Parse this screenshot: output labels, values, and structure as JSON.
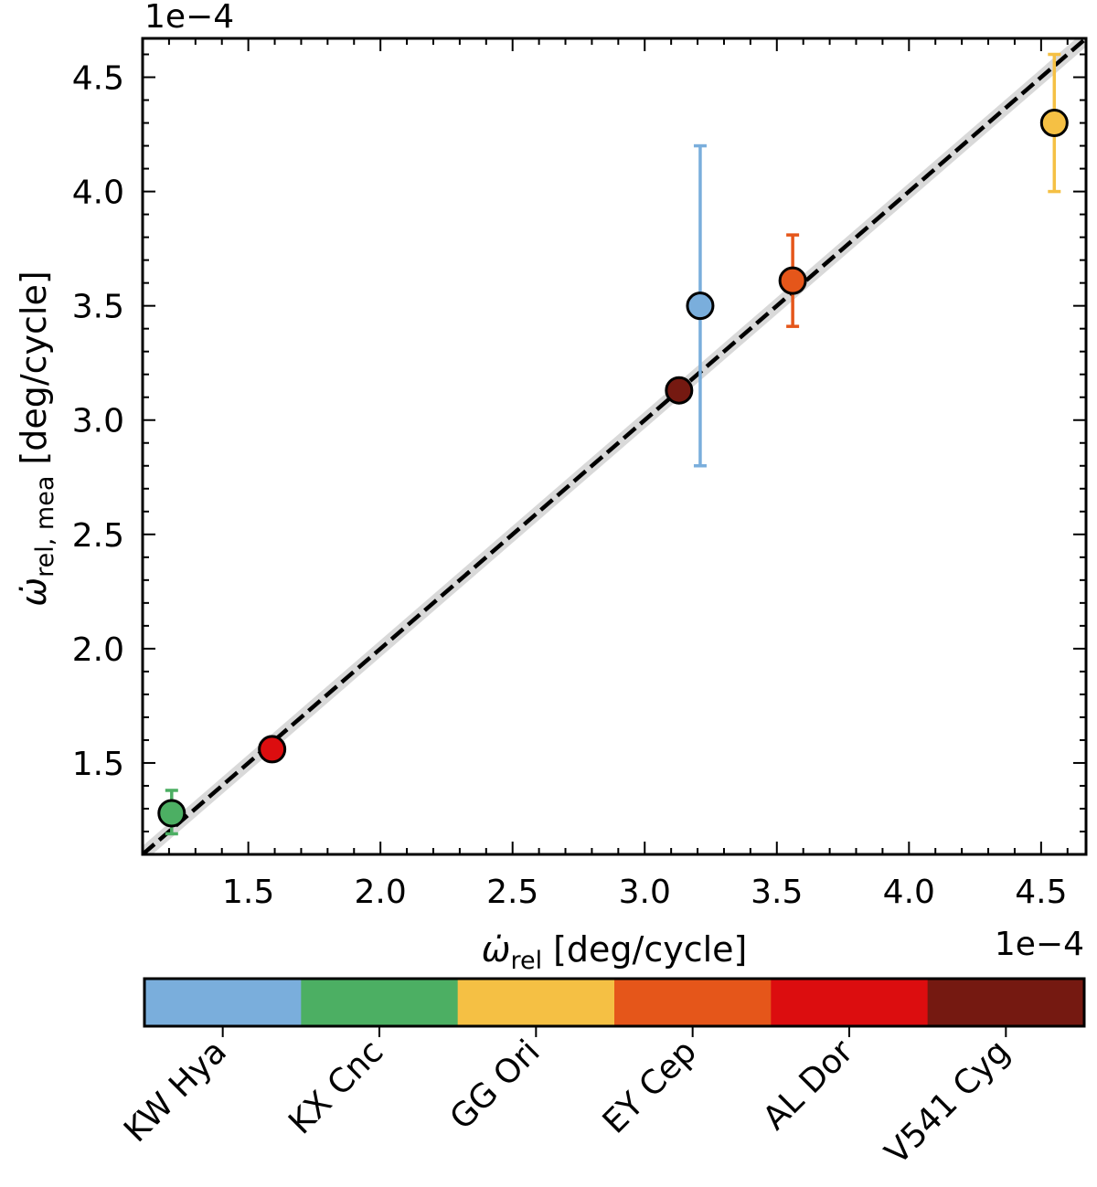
{
  "chart_data": {
    "type": "scatter",
    "x_multiplier_label": "1e−4",
    "y_multiplier_label": "1e−4",
    "xlabel_symbol": "ω̇",
    "xlabel_sub": "rel",
    "xlabel_unit": "[deg/cycle]",
    "ylabel_symbol": "ω̇",
    "ylabel_sub": "rel, mea",
    "ylabel_unit": "[deg/cycle]",
    "xlim": [
      1.1,
      4.67
    ],
    "ylim": [
      1.1,
      4.67
    ],
    "xticks": [
      "1.5",
      "2.0",
      "2.5",
      "3.0",
      "3.5",
      "4.0",
      "4.5"
    ],
    "yticks": [
      "1.5",
      "2.0",
      "2.5",
      "3.0",
      "3.5",
      "4.0",
      "4.5"
    ],
    "reference_line": {
      "style": "dashed",
      "color": "#000000",
      "band_color": "#d9d9d9",
      "slope": 1,
      "intercept": 0
    },
    "points": [
      {
        "name": "KW Hya",
        "x": 3.21,
        "y": 3.5,
        "err_low": 0.7,
        "err_high": 0.7,
        "color": "#7aaedc"
      },
      {
        "name": "KX Cnc",
        "x": 1.21,
        "y": 1.28,
        "err_low": 0.09,
        "err_high": 0.1,
        "color": "#4caf63"
      },
      {
        "name": "GG Ori",
        "x": 4.55,
        "y": 4.3,
        "err_low": 0.3,
        "err_high": 0.3,
        "color": "#f5c044"
      },
      {
        "name": "EY Cep",
        "x": 3.56,
        "y": 3.61,
        "err_low": 0.2,
        "err_high": 0.2,
        "color": "#e5561a"
      },
      {
        "name": "AL Dor",
        "x": 1.59,
        "y": 1.56,
        "err_low": 0.03,
        "err_high": 0.03,
        "color": "#dc0d0f"
      },
      {
        "name": "V541 Cyg",
        "x": 3.13,
        "y": 3.13,
        "err_low": 0.02,
        "err_high": 0.02,
        "color": "#751911"
      }
    ],
    "colorbar": {
      "labels": [
        "KW Hya",
        "KX Cnc",
        "GG Ori",
        "EY Cep",
        "AL Dor",
        "V541 Cyg"
      ],
      "colors": [
        "#7aaedc",
        "#4caf63",
        "#f5c044",
        "#e5561a",
        "#dc0d0f",
        "#751911"
      ]
    }
  }
}
